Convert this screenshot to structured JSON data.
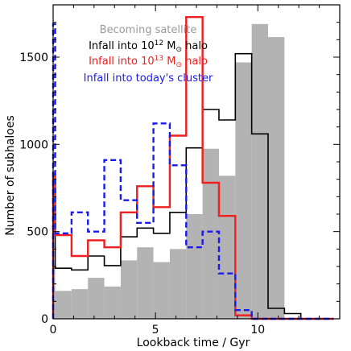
{
  "chart_data": {
    "type": "histogram",
    "xlabel": "Lookback time / Gyr",
    "ylabel": "Number of subhaloes",
    "xlim": [
      0,
      14
    ],
    "ylim": [
      0,
      1800
    ],
    "bin_width": 0.8,
    "xticks": [
      0,
      5,
      10
    ],
    "yticks": [
      0,
      500,
      1000,
      1500
    ],
    "xticks_minor_step": 1,
    "yticks_minor_step": 100,
    "grid": false,
    "legend_position": "top-center",
    "series": [
      {
        "name": "Becoming satellite",
        "style": "filled",
        "color": "#b3b3b3",
        "bin_edges": [
          0.0,
          0.1,
          0.9,
          1.7,
          2.5,
          3.3,
          4.1,
          4.9,
          5.7,
          6.5,
          7.3,
          8.1,
          8.9,
          9.7,
          10.5,
          11.3,
          12.1,
          12.9,
          13.7
        ],
        "values": [
          305,
          160,
          170,
          235,
          185,
          335,
          410,
          325,
          400,
          600,
          975,
          820,
          1470,
          1690,
          1615,
          0,
          0,
          0
        ]
      },
      {
        "name": "Infall into 10^12 M⊙ halo",
        "style": "step",
        "color": "#000000",
        "bin_edges": [
          0.0,
          0.1,
          0.9,
          1.7,
          2.5,
          3.3,
          4.1,
          4.9,
          5.7,
          6.5,
          7.3,
          8.1,
          8.9,
          9.7,
          10.5,
          11.3,
          12.1,
          12.9,
          13.7
        ],
        "values": [
          620,
          290,
          280,
          360,
          305,
          470,
          520,
          490,
          610,
          980,
          1200,
          1140,
          1520,
          1060,
          60,
          30,
          0,
          0
        ]
      },
      {
        "name": "Infall into 10^13 M⊙ halo",
        "style": "step",
        "color": "#ee2020",
        "bin_edges": [
          0.0,
          0.1,
          0.9,
          1.7,
          2.5,
          3.3,
          4.1,
          4.9,
          5.7,
          6.5,
          7.3,
          8.1,
          8.9,
          9.7,
          10.5,
          11.3,
          12.1,
          12.9,
          13.7
        ],
        "values": [
          830,
          480,
          360,
          450,
          410,
          610,
          760,
          640,
          1050,
          1730,
          780,
          590,
          20,
          0,
          0,
          0,
          0,
          0
        ]
      },
      {
        "name": "Infall into today's cluster",
        "style": "dashed-step",
        "color": "#1a1aee",
        "bin_edges": [
          0.0,
          0.1,
          0.9,
          1.7,
          2.5,
          3.3,
          4.1,
          4.9,
          5.7,
          6.5,
          7.3,
          8.1,
          8.9,
          9.7,
          10.5,
          11.3,
          12.1,
          12.9,
          13.7
        ],
        "values": [
          1690,
          490,
          610,
          500,
          910,
          680,
          550,
          1120,
          880,
          410,
          500,
          260,
          50,
          0,
          0,
          0,
          0,
          0
        ]
      }
    ]
  }
}
